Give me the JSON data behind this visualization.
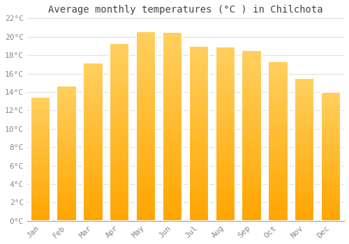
{
  "months": [
    "Jan",
    "Feb",
    "Mar",
    "Apr",
    "May",
    "Jun",
    "Jul",
    "Aug",
    "Sep",
    "Oct",
    "Nov",
    "Dec"
  ],
  "temperatures": [
    13.5,
    14.7,
    17.2,
    19.3,
    20.6,
    20.5,
    19.0,
    18.9,
    18.5,
    17.3,
    15.5,
    14.0
  ],
  "bar_color_top": "#FFD060",
  "bar_color_bottom": "#FFA500",
  "bar_edge_color": "#FFFFFF",
  "background_color": "#FFFFFF",
  "grid_color": "#E0E0E0",
  "title": "Average monthly temperatures (°C ) in Chilchota",
  "title_fontsize": 10,
  "tick_label_color": "#888888",
  "tick_fontsize": 8,
  "ylim": [
    0,
    22
  ],
  "ytick_step": 2,
  "bar_width": 0.75
}
